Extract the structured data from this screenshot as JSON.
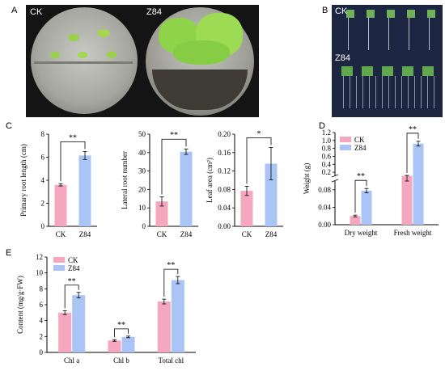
{
  "panels": {
    "A": "A",
    "B": "B",
    "C": "C",
    "D": "D",
    "E": "E"
  },
  "photos": {
    "A_left": "CK",
    "A_right": "Z84",
    "B_top": "CK",
    "B_bottom": "Z84"
  },
  "colors": {
    "ck": "#f4a7bf",
    "z84": "#a9c4f5"
  },
  "chart_data": [
    {
      "id": "C1",
      "type": "bar",
      "categories": [
        "CK",
        "Z84"
      ],
      "values": [
        3.6,
        6.15
      ],
      "errors": [
        0.1,
        0.35
      ],
      "ylabel": "Primary root length (cm)",
      "ylim": [
        0,
        8
      ],
      "yticks": [
        "0",
        "2",
        "4",
        "6",
        "8"
      ],
      "significance": "**"
    },
    {
      "id": "C2",
      "type": "bar",
      "categories": [
        "CK",
        "Z84"
      ],
      "values": [
        13.5,
        40.5
      ],
      "errors": [
        2.5,
        1.5
      ],
      "ylabel": "Lateral root number",
      "ylim": [
        0,
        50
      ],
      "yticks": [
        "0",
        "10",
        "20",
        "30",
        "40",
        "50"
      ],
      "significance": "**"
    },
    {
      "id": "C3",
      "type": "bar",
      "categories": [
        "CK",
        "Z84"
      ],
      "values": [
        0.077,
        0.136
      ],
      "errors": [
        0.01,
        0.035
      ],
      "ylabel": "Leaf area (cm²)",
      "ylim": [
        0,
        0.2
      ],
      "yticks": [
        "0.00",
        "0.04",
        "0.08",
        "0.12",
        "0.16",
        "0.20"
      ],
      "significance": "*"
    },
    {
      "id": "D",
      "type": "bar",
      "categories": [
        "Dry weight",
        "Fresh weight"
      ],
      "series": [
        {
          "name": "CK",
          "values": [
            0.02,
            0.11
          ],
          "errors": [
            0.002,
            0.01
          ]
        },
        {
          "name": "Z84",
          "values": [
            0.078,
            0.92
          ],
          "errors": [
            0.005,
            0.06
          ]
        }
      ],
      "ylabel": "Weight (g)",
      "broken_axis": true,
      "yticks_lower": [
        "0.00",
        "0.04",
        "0.08"
      ],
      "yticks_upper": [
        "0.2",
        "0.4",
        "0.6",
        "0.8",
        "1.0",
        "1.2"
      ],
      "significance": [
        "**",
        "**"
      ],
      "legend": "top-left"
    },
    {
      "id": "E",
      "type": "bar",
      "categories": [
        "Chl a",
        "Chl b",
        "Total chl"
      ],
      "series": [
        {
          "name": "CK",
          "values": [
            5.0,
            1.5,
            6.4
          ],
          "errors": [
            0.25,
            0.1,
            0.3
          ]
        },
        {
          "name": "Z84",
          "values": [
            7.2,
            1.95,
            9.1
          ],
          "errors": [
            0.35,
            0.1,
            0.45
          ]
        }
      ],
      "ylabel": "Content (mg/g·FW)",
      "ylim": [
        0,
        12
      ],
      "yticks": [
        "0",
        "2",
        "4",
        "6",
        "8",
        "10",
        "12"
      ],
      "significance": [
        "**",
        "**",
        "**"
      ],
      "legend": "top-left"
    }
  ]
}
